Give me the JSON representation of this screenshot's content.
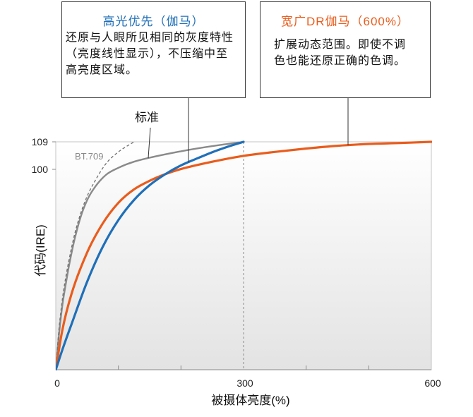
{
  "chart_data": {
    "type": "line",
    "title": "",
    "xlabel": "被摄体亮度(%)",
    "ylabel": "代码(IRE)",
    "xlim": [
      0,
      600
    ],
    "ylim": [
      0,
      109
    ],
    "xticks": [
      0,
      300,
      600
    ],
    "xminor_ticks": [
      100,
      200,
      400,
      500
    ],
    "yticks": [
      100,
      109
    ],
    "grid": false,
    "reference_lines": [
      {
        "axis": "x",
        "value": 300,
        "style": "dashed",
        "color": "#8c8c8c"
      }
    ],
    "series": [
      {
        "name": "BT.709",
        "style": "dashed",
        "color": "#707070",
        "points": [
          [
            0,
            0
          ],
          [
            5,
            20
          ],
          [
            10,
            34
          ],
          [
            15,
            44.5
          ],
          [
            20,
            53
          ],
          [
            30,
            67.5
          ],
          [
            40,
            78.3
          ],
          [
            50,
            86.5
          ],
          [
            60,
            92.7
          ],
          [
            80,
            101.8
          ],
          [
            100,
            105.7
          ],
          [
            125,
            109
          ]
        ]
      },
      {
        "name": "标准",
        "style": "solid",
        "color": "#8a8a8a",
        "points": [
          [
            0,
            0
          ],
          [
            5,
            17
          ],
          [
            10,
            31
          ],
          [
            15,
            41
          ],
          [
            20,
            50
          ],
          [
            30,
            65
          ],
          [
            40,
            76.5
          ],
          [
            50,
            84.5
          ],
          [
            60,
            90
          ],
          [
            80,
            97.2
          ],
          [
            100,
            100.5
          ],
          [
            125,
            102.5
          ],
          [
            150,
            103.8
          ],
          [
            200,
            105.9
          ],
          [
            250,
            107.6
          ],
          [
            300,
            109
          ]
        ]
      },
      {
        "name": "高光优先（伽马）",
        "style": "solid",
        "color": "#1f6fb8",
        "description": [
          "还原与人眼所见相同的灰度特性",
          "（亮度线性显示），不压缩中至",
          "高亮度区域。"
        ],
        "points": [
          [
            0,
            0
          ],
          [
            10,
            9.5
          ],
          [
            25,
            22.6
          ],
          [
            50,
            43.8
          ],
          [
            75,
            61.3
          ],
          [
            100,
            74.7
          ],
          [
            125,
            84.7
          ],
          [
            150,
            92.1
          ],
          [
            175,
            97.6
          ],
          [
            200,
            101.3
          ],
          [
            225,
            103.5
          ],
          [
            250,
            105.6
          ],
          [
            275,
            107.4
          ],
          [
            300,
            109
          ]
        ]
      },
      {
        "name": "宽广DR伽马（600%）",
        "style": "solid",
        "color": "#e95c1c",
        "description": [
          "扩展动态范围。即使不调",
          "色也能还原正确的色调。"
        ],
        "points": [
          [
            0,
            0
          ],
          [
            10,
            19
          ],
          [
            25,
            37.7
          ],
          [
            50,
            58.4
          ],
          [
            75,
            73
          ],
          [
            100,
            83.3
          ],
          [
            125,
            90
          ],
          [
            150,
            94.3
          ],
          [
            175,
            97.6
          ],
          [
            200,
            100.1
          ],
          [
            250,
            102.5
          ],
          [
            300,
            104.4
          ],
          [
            350,
            105.7
          ],
          [
            400,
            106.8
          ],
          [
            450,
            107.7
          ],
          [
            500,
            108.3
          ],
          [
            550,
            108.6
          ],
          [
            600,
            109
          ]
        ]
      }
    ]
  }
}
